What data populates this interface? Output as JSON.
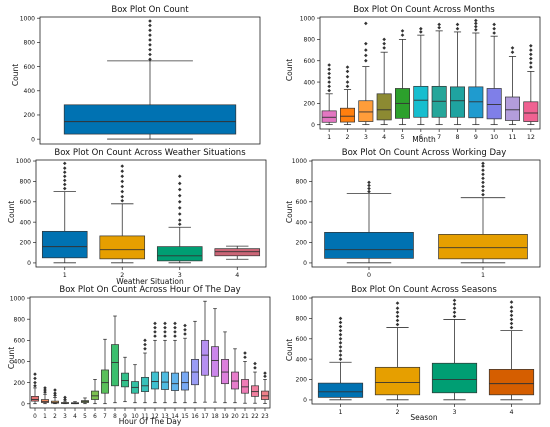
{
  "chart_data": [
    {
      "type": "box",
      "title": "Box Plot On Count",
      "xlabel": "",
      "ylabel": "Count",
      "ylim": [
        -40,
        1010
      ],
      "yticks": [
        0,
        200,
        400,
        600,
        800,
        1000
      ],
      "categories": [
        ""
      ],
      "boxes": [
        {
          "min": 1,
          "q1": 42,
          "median": 145,
          "q3": 284,
          "max": 647,
          "outliers": [
            660,
            700,
            740,
            780,
            820,
            860,
            900,
            940,
            977
          ]
        }
      ],
      "colors": [
        "#0072b2"
      ]
    },
    {
      "type": "box",
      "title": "Box Plot On Count Across Months",
      "xlabel": "Month",
      "ylabel": "Count",
      "ylim": [
        -40,
        1010
      ],
      "yticks": [
        0,
        200,
        400,
        600,
        800,
        1000
      ],
      "categories": [
        "1",
        "2",
        "3",
        "4",
        "5",
        "6",
        "7",
        "8",
        "9",
        "10",
        "11",
        "12"
      ],
      "boxes": [
        {
          "min": 1,
          "q1": 23,
          "median": 70,
          "q3": 130,
          "max": 290,
          "outliers": [
            320,
            360,
            400,
            440,
            480,
            520,
            560
          ]
        },
        {
          "min": 1,
          "q1": 25,
          "median": 80,
          "q3": 155,
          "max": 330,
          "outliers": [
            360,
            400,
            450,
            500,
            540
          ]
        },
        {
          "min": 1,
          "q1": 30,
          "median": 120,
          "q3": 225,
          "max": 545,
          "outliers": [
            600,
            650,
            700,
            760,
            950
          ]
        },
        {
          "min": 1,
          "q1": 45,
          "median": 140,
          "q3": 290,
          "max": 680,
          "outliers": [
            720,
            760,
            800
          ]
        },
        {
          "min": 1,
          "q1": 60,
          "median": 200,
          "q3": 340,
          "max": 800,
          "outliers": [
            840,
            880
          ]
        },
        {
          "min": 1,
          "q1": 70,
          "median": 230,
          "q3": 360,
          "max": 840,
          "outliers": [
            870,
            900
          ]
        },
        {
          "min": 1,
          "q1": 70,
          "median": 220,
          "q3": 360,
          "max": 880,
          "outliers": [
            910,
            940
          ]
        },
        {
          "min": 1,
          "q1": 70,
          "median": 225,
          "q3": 355,
          "max": 870,
          "outliers": [
            900,
            940
          ]
        },
        {
          "min": 1,
          "q1": 65,
          "median": 215,
          "q3": 355,
          "max": 860,
          "outliers": [
            890,
            920,
            950,
            977
          ]
        },
        {
          "min": 1,
          "q1": 55,
          "median": 190,
          "q3": 340,
          "max": 830,
          "outliers": [
            860,
            900,
            940
          ]
        },
        {
          "min": 1,
          "q1": 40,
          "median": 140,
          "q3": 260,
          "max": 640,
          "outliers": [
            680,
            720
          ]
        },
        {
          "min": 1,
          "q1": 30,
          "median": 110,
          "q3": 215,
          "max": 500,
          "outliers": [
            540,
            580,
            620,
            660,
            700,
            740
          ]
        }
      ],
      "colors": [
        "#e377c2",
        "#ff7f0e",
        "#ff9d3a",
        "#8c8a32",
        "#2ca02c",
        "#17becf",
        "#26a69a",
        "#1fa3a0",
        "#1f9bcf",
        "#7f7fe8",
        "#b39ddb",
        "#f06292"
      ]
    },
    {
      "type": "box",
      "title": "Box Plot On Count Across Weather Situations",
      "xlabel": "Weather Situation",
      "ylabel": "Count",
      "ylim": [
        -40,
        1010
      ],
      "yticks": [
        0,
        200,
        400,
        600,
        800,
        1000
      ],
      "categories": [
        "1",
        "2",
        "3",
        "4"
      ],
      "boxes": [
        {
          "min": 1,
          "q1": 50,
          "median": 160,
          "q3": 310,
          "max": 700,
          "outliers": [
            730,
            770,
            810,
            850,
            890,
            930,
            977
          ]
        },
        {
          "min": 1,
          "q1": 40,
          "median": 130,
          "q3": 265,
          "max": 580,
          "outliers": [
            610,
            650,
            700,
            750,
            800,
            850,
            900,
            950
          ]
        },
        {
          "min": 1,
          "q1": 20,
          "median": 70,
          "q3": 160,
          "max": 350,
          "outliers": [
            380,
            420,
            480,
            540,
            600,
            660,
            720,
            780,
            850
          ]
        },
        {
          "min": 36,
          "q1": 70,
          "median": 110,
          "q3": 140,
          "max": 165,
          "outliers": []
        }
      ],
      "colors": [
        "#0072b2",
        "#e69f00",
        "#009e73",
        "#cc6677"
      ]
    },
    {
      "type": "box",
      "title": "Box Plot On Count Across Working Day",
      "xlabel": "",
      "ylabel": "Count",
      "ylim": [
        -40,
        1010
      ],
      "yticks": [
        0,
        200,
        400,
        600,
        800,
        1000
      ],
      "categories": [
        "0",
        "1"
      ],
      "boxes": [
        {
          "min": 1,
          "q1": 45,
          "median": 130,
          "q3": 300,
          "max": 680,
          "outliers": [
            700,
            730,
            760,
            790
          ]
        },
        {
          "min": 1,
          "q1": 40,
          "median": 150,
          "q3": 280,
          "max": 640,
          "outliers": [
            670,
            710,
            750,
            790,
            830,
            870,
            910,
            950,
            977
          ]
        }
      ],
      "colors": [
        "#0072b2",
        "#e69f00"
      ]
    },
    {
      "type": "box",
      "title": "Box Plot On Count Across Hour Of The Day",
      "xlabel": "Hour Of The Day",
      "ylabel": "Count",
      "ylim": [
        -40,
        1010
      ],
      "yticks": [
        0,
        200,
        400,
        600,
        800,
        1000
      ],
      "categories": [
        "0",
        "1",
        "2",
        "3",
        "4",
        "5",
        "6",
        "7",
        "8",
        "9",
        "10",
        "11",
        "12",
        "13",
        "14",
        "15",
        "16",
        "17",
        "18",
        "19",
        "20",
        "21",
        "22",
        "23"
      ],
      "boxes": [
        {
          "min": 1,
          "q1": 25,
          "median": 40,
          "q3": 70,
          "max": 150,
          "outliers": [
            170,
            200,
            240,
            280
          ]
        },
        {
          "min": 1,
          "q1": 12,
          "median": 20,
          "q3": 40,
          "max": 90,
          "outliers": [
            110,
            130,
            150
          ]
        },
        {
          "min": 1,
          "q1": 6,
          "median": 11,
          "q3": 25,
          "max": 60,
          "outliers": [
            80,
            100,
            130
          ]
        },
        {
          "min": 1,
          "q1": 3,
          "median": 6,
          "q3": 12,
          "max": 25,
          "outliers": [
            40,
            60
          ]
        },
        {
          "min": 1,
          "q1": 3,
          "median": 6,
          "q3": 10,
          "max": 20,
          "outliers": []
        },
        {
          "min": 1,
          "q1": 12,
          "median": 20,
          "q3": 30,
          "max": 55,
          "outliers": []
        },
        {
          "min": 1,
          "q1": 40,
          "median": 75,
          "q3": 120,
          "max": 230,
          "outliers": []
        },
        {
          "min": 1,
          "q1": 100,
          "median": 200,
          "q3": 320,
          "max": 610,
          "outliers": []
        },
        {
          "min": 10,
          "q1": 170,
          "median": 390,
          "q3": 560,
          "max": 830,
          "outliers": []
        },
        {
          "min": 20,
          "q1": 160,
          "median": 220,
          "q3": 290,
          "max": 440,
          "outliers": []
        },
        {
          "min": 10,
          "q1": 100,
          "median": 155,
          "q3": 210,
          "max": 370,
          "outliers": []
        },
        {
          "min": 10,
          "q1": 115,
          "median": 170,
          "q3": 250,
          "max": 480,
          "outliers": [
            520,
            560,
            600
          ]
        },
        {
          "min": 10,
          "q1": 140,
          "median": 210,
          "q3": 300,
          "max": 600,
          "outliers": [
            640,
            680,
            720,
            760
          ]
        },
        {
          "min": 10,
          "q1": 135,
          "median": 205,
          "q3": 300,
          "max": 600,
          "outliers": [
            640,
            680,
            720,
            760
          ]
        },
        {
          "min": 10,
          "q1": 125,
          "median": 190,
          "q3": 290,
          "max": 600,
          "outliers": [
            640,
            680,
            720,
            760
          ]
        },
        {
          "min": 10,
          "q1": 130,
          "median": 200,
          "q3": 300,
          "max": 620,
          "outliers": [
            660,
            700,
            740
          ]
        },
        {
          "min": 10,
          "q1": 180,
          "median": 300,
          "q3": 420,
          "max": 780,
          "outliers": []
        },
        {
          "min": 15,
          "q1": 270,
          "median": 460,
          "q3": 600,
          "max": 970,
          "outliers": []
        },
        {
          "min": 15,
          "q1": 260,
          "median": 410,
          "q3": 540,
          "max": 900,
          "outliers": []
        },
        {
          "min": 10,
          "q1": 190,
          "median": 300,
          "q3": 420,
          "max": 680,
          "outliers": []
        },
        {
          "min": 10,
          "q1": 140,
          "median": 215,
          "q3": 300,
          "max": 520,
          "outliers": []
        },
        {
          "min": 5,
          "q1": 100,
          "median": 160,
          "q3": 230,
          "max": 400,
          "outliers": [
            440,
            480
          ]
        },
        {
          "min": 5,
          "q1": 70,
          "median": 115,
          "q3": 170,
          "max": 300,
          "outliers": [
            340,
            380
          ]
        },
        {
          "min": 3,
          "q1": 40,
          "median": 75,
          "q3": 120,
          "max": 230,
          "outliers": [
            260,
            290
          ]
        }
      ],
      "colors": [
        "#e57373",
        "#ef8a62",
        "#e8a55a",
        "#d4b24c",
        "#b8b84a",
        "#9cbf4d",
        "#7cc050",
        "#59c05a",
        "#3cbf6e",
        "#32c08a",
        "#33c1a4",
        "#37c1bb",
        "#3fc0cf",
        "#4dbbe0",
        "#60b3ec",
        "#78a8f3",
        "#9a9cf5",
        "#b590f2",
        "#cb86ea",
        "#dc7fdc",
        "#e77ccb",
        "#ee7cb6",
        "#f07f9f",
        "#ee8089"
      ]
    },
    {
      "type": "box",
      "title": "Box Plot On Count Across Seasons",
      "xlabel": "Season",
      "ylabel": "Count",
      "ylim": [
        -40,
        1010
      ],
      "yticks": [
        0,
        200,
        400,
        600,
        800,
        1000
      ],
      "categories": [
        "1",
        "2",
        "3",
        "4"
      ],
      "boxes": [
        {
          "min": 1,
          "q1": 25,
          "median": 80,
          "q3": 165,
          "max": 370,
          "outliers": [
            400,
            440,
            480,
            520,
            560,
            600,
            640,
            680,
            720,
            760,
            800
          ]
        },
        {
          "min": 1,
          "q1": 50,
          "median": 170,
          "q3": 320,
          "max": 710,
          "outliers": [
            740,
            780,
            820,
            860,
            900,
            950
          ]
        },
        {
          "min": 1,
          "q1": 70,
          "median": 200,
          "q3": 360,
          "max": 790,
          "outliers": [
            820,
            860,
            900,
            940,
            977
          ]
        },
        {
          "min": 1,
          "q1": 50,
          "median": 160,
          "q3": 300,
          "max": 680,
          "outliers": [
            710,
            750,
            790,
            830,
            870,
            910,
            960
          ]
        }
      ],
      "colors": [
        "#0072b2",
        "#e69f00",
        "#009e73",
        "#d55e00"
      ]
    }
  ]
}
